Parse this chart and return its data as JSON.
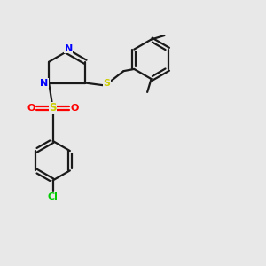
{
  "background_color": "#e8e8e8",
  "bond_color": "#1a1a1a",
  "N_color": "#0000ff",
  "S_color": "#cccc00",
  "O_color": "#ff0000",
  "Cl_color": "#00cc00",
  "figsize": [
    3.0,
    3.0
  ],
  "dpi": 100,
  "xlim": [
    0,
    10
  ],
  "ylim": [
    0,
    10
  ]
}
